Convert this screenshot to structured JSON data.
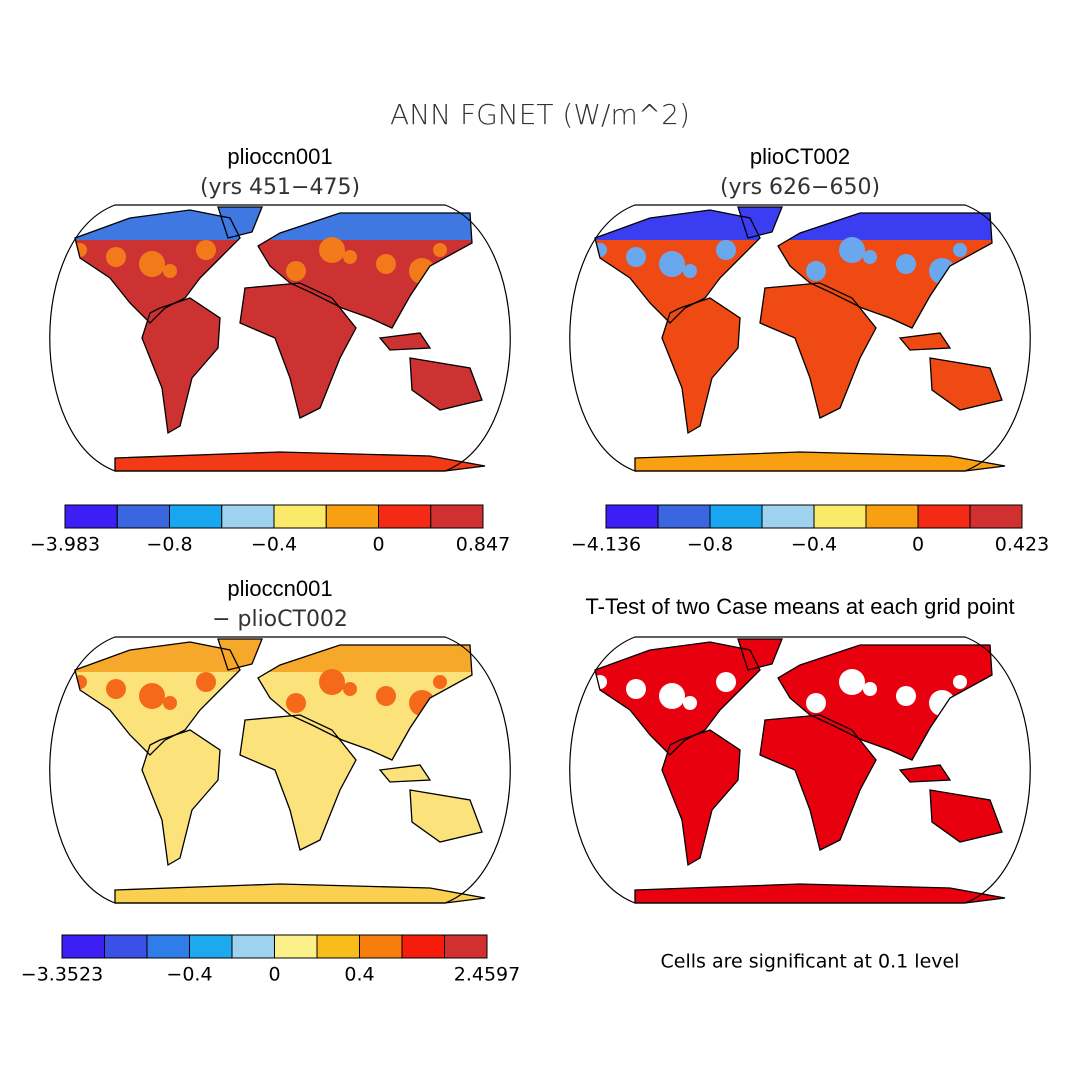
{
  "title": "ANN FGNET (W/m^2)",
  "panels": [
    {
      "title": "plioccn001",
      "subtitle": "(yrs 451−475)",
      "colorbar": {
        "colors": [
          "#3d1ef5",
          "#3a66e0",
          "#19a6f0",
          "#9ed2ee",
          "#fbe96a",
          "#f8a011",
          "#f42a14",
          "#d03030"
        ],
        "labels": [
          "−3.983",
          "−0.8",
          "−0.4",
          "0",
          "0.847"
        ]
      }
    },
    {
      "title": "plioCT002",
      "subtitle": "(yrs 626−650)",
      "colorbar": {
        "colors": [
          "#3d1ef5",
          "#3a66e0",
          "#19a6f0",
          "#9ed2ee",
          "#fbe96a",
          "#f8a011",
          "#f42a14",
          "#d03030"
        ],
        "labels": [
          "−4.136",
          "−0.8",
          "−0.4",
          "0",
          "0.423"
        ]
      }
    },
    {
      "title": "plioccn001",
      "subtitle": "− plioCT002",
      "colorbar": {
        "colors": [
          "#3d1ef5",
          "#3a50e6",
          "#2f7de8",
          "#1ea9ef",
          "#9ed2ee",
          "#fbf08a",
          "#f9bd1b",
          "#f77e0c",
          "#f51c0c",
          "#d03030"
        ],
        "labels": [
          "−3.3523",
          "−0.4",
          "0",
          "0.4",
          "2.4597"
        ]
      }
    },
    {
      "title": "T-Test of two Case means at each grid point",
      "note": "Cells are significant at 0.1 level"
    }
  ]
}
